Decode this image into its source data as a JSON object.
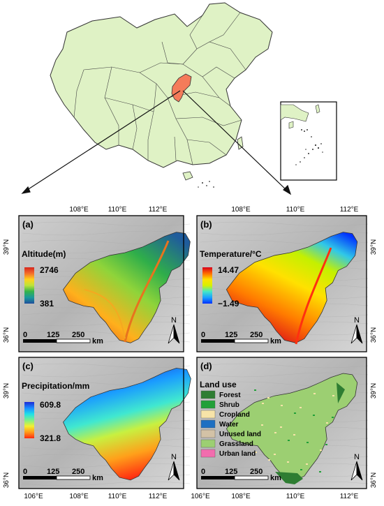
{
  "overview": {
    "inset_region": "South China Sea islands"
  },
  "axes": {
    "top_ticks": [
      "108°E",
      "110°E",
      "112°E"
    ],
    "bottom_ticks": [
      "106°E",
      "108°E",
      "110°E",
      "112°E"
    ],
    "left_ticks": [
      "39°N",
      "36°N"
    ],
    "right_ticks": [
      "39°N",
      "36°N"
    ]
  },
  "panels": [
    {
      "id": "a",
      "letter": "(a)",
      "legend_title": "Altitude(m)",
      "legend_max": "2746",
      "legend_min": "381",
      "ramp": [
        "#d7261e",
        "#f46d2a",
        "#ffd21c",
        "#bde33a",
        "#34b34a",
        "#1a9a9c",
        "#1f4e9c"
      ]
    },
    {
      "id": "b",
      "letter": "(b)",
      "legend_title": "Temperature/°C",
      "legend_max": "14.47",
      "legend_min": "−1.49",
      "ramp": [
        "#d7001c",
        "#ff6a00",
        "#ffe100",
        "#d8f000",
        "#44e8c8",
        "#1aa0ff",
        "#0030ff"
      ]
    },
    {
      "id": "c",
      "letter": "(c)",
      "legend_title": "Precipitation/mm",
      "legend_max": "609.8",
      "legend_min": "321.8",
      "ramp": [
        "#1c2ad6",
        "#1a8cff",
        "#20e0e8",
        "#7cf08a",
        "#f4f030",
        "#ff9a1a",
        "#ff2a10"
      ]
    },
    {
      "id": "d",
      "letter": "(d)",
      "legend_title": "Land use",
      "classes": [
        {
          "label": "Forest",
          "color": "#2e7d32"
        },
        {
          "label": "Shrub",
          "color": "#21a038"
        },
        {
          "label": "Cropland",
          "color": "#f7e4a8"
        },
        {
          "label": "Water",
          "color": "#1e6fc2"
        },
        {
          "label": "Unused land",
          "color": "#d3c2a6"
        },
        {
          "label": "Grassland",
          "color": "#9ccf72"
        },
        {
          "label": "Urban land",
          "color": "#f26dae"
        }
      ]
    }
  ],
  "scale_bar": {
    "ticks": [
      "0",
      "125",
      "250"
    ],
    "unit": "km"
  },
  "north_arrow": "N"
}
